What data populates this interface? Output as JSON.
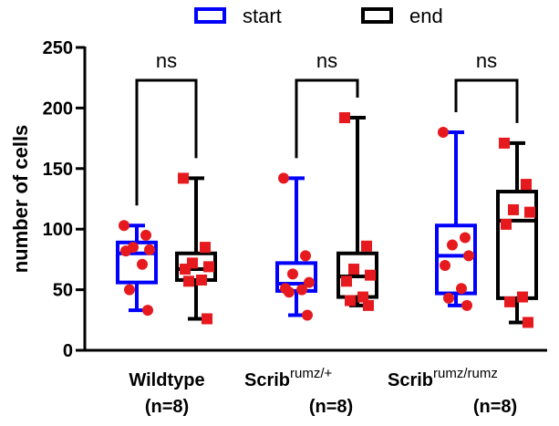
{
  "chart_data": {
    "type": "box",
    "ylabel": "number of cells",
    "ylim": [
      0,
      250
    ],
    "yticks": [
      0,
      50,
      100,
      150,
      200,
      250
    ],
    "legend": {
      "position": "top",
      "entries": [
        {
          "name": "start",
          "color": "#0000ff"
        },
        {
          "name": "end",
          "color": "#000000"
        }
      ]
    },
    "point_color": "#e6191e",
    "groups": [
      {
        "label_main": "Wildtype",
        "label_sup": "",
        "label_n": "(n=8)",
        "significance": "ns",
        "boxes": [
          {
            "series": "start",
            "min": 33,
            "q1": 56,
            "median": 80,
            "q3": 89,
            "max": 103,
            "points": [
              103,
              95,
              85,
              83,
              82,
              71,
              50,
              33
            ]
          },
          {
            "series": "end",
            "min": 26,
            "q1": 58,
            "median": 67,
            "q3": 80,
            "max": 142,
            "points": [
              142,
              85,
              72,
              69,
              67,
              58,
              57,
              26
            ]
          }
        ]
      },
      {
        "label_main": "Scrib",
        "label_sup": "rumz/+",
        "label_n": "(n=8)",
        "significance": "ns",
        "boxes": [
          {
            "series": "start",
            "min": 29,
            "q1": 49,
            "median": 55,
            "q3": 72,
            "max": 142,
            "points": [
              142,
              78,
              63,
              56,
              51,
              50,
              48,
              29
            ]
          },
          {
            "series": "end",
            "min": 37,
            "q1": 44,
            "median": 61,
            "q3": 80,
            "max": 192,
            "points": [
              192,
              86,
              67,
              62,
              57,
              44,
              41,
              37
            ]
          }
        ]
      },
      {
        "label_main": "Scrib",
        "label_sup": "rumz/rumz",
        "label_n": "(n=8)",
        "significance": "ns",
        "boxes": [
          {
            "series": "start",
            "min": 37,
            "q1": 47,
            "median": 78,
            "q3": 103,
            "max": 180,
            "points": [
              180,
              93,
              87,
              78,
              70,
              51,
              43,
              37
            ]
          },
          {
            "series": "end",
            "min": 23,
            "q1": 43,
            "median": 107,
            "q3": 131,
            "max": 171,
            "points": [
              171,
              137,
              116,
              114,
              104,
              44,
              40,
              23
            ]
          }
        ]
      }
    ]
  }
}
